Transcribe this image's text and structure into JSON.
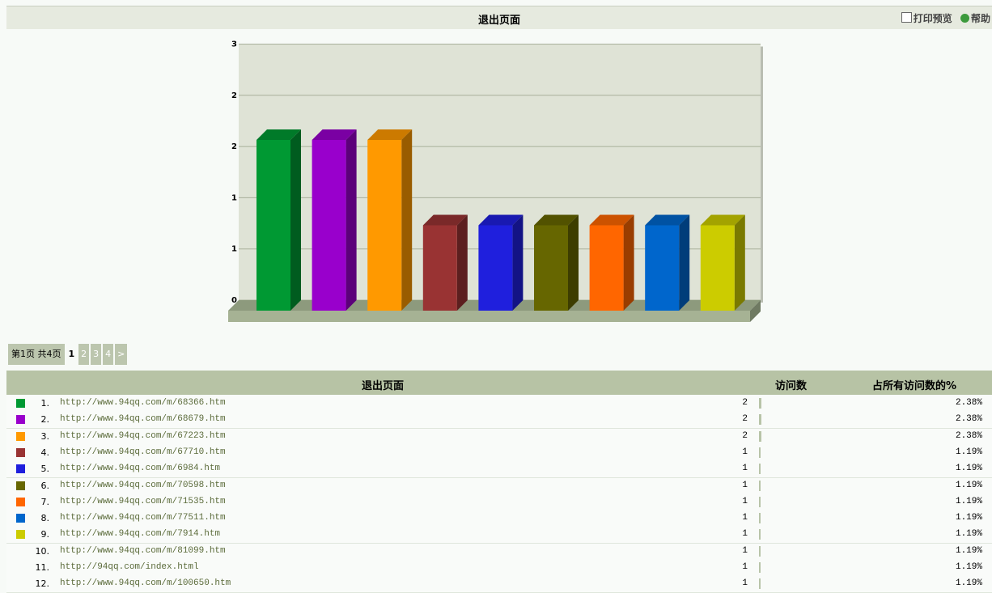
{
  "header": {
    "title": "退出页面",
    "print": "打印预览",
    "help": "帮助"
  },
  "chart_data": {
    "type": "bar",
    "categories": [
      null,
      null,
      null,
      null,
      null,
      null,
      null,
      null,
      null
    ],
    "values": [
      2,
      2,
      2,
      1,
      1,
      1,
      1,
      1,
      1
    ],
    "colors": [
      "#009933",
      "#9900cc",
      "#ff9900",
      "#993333",
      "#1f1fdd",
      "#666600",
      "#ff6600",
      "#0066cc",
      "#cccc00"
    ],
    "ylim": [
      0,
      3
    ],
    "yticks": [
      0,
      {
        "value": 0.6,
        "label": "1"
      },
      {
        "value": 1.2,
        "label": "1"
      },
      {
        "value": 1.8,
        "label": "2"
      },
      {
        "value": 2.4,
        "label": "2"
      },
      3
    ],
    "grid": true
  },
  "pagination": {
    "summary": "第1页 共4页",
    "pages": [
      "1",
      "2",
      "3",
      "4"
    ],
    "next": ">"
  },
  "table": {
    "columns": [
      "退出页面",
      "访问数",
      "占所有访问数的%"
    ],
    "rows": [
      {
        "rank": "1.",
        "url": "http://www.94qq.com/m/68366.htm",
        "visits": 2,
        "share": "2.38%"
      },
      {
        "rank": "2.",
        "url": "http://www.94qq.com/m/68679.htm",
        "visits": 2,
        "share": "2.38%"
      },
      {
        "rank": "3.",
        "url": "http://www.94qq.com/m/67223.htm",
        "visits": 2,
        "share": "2.38%"
      },
      {
        "rank": "4.",
        "url": "http://www.94qq.com/m/67710.htm",
        "visits": 1,
        "share": "1.19%"
      },
      {
        "rank": "5.",
        "url": "http://www.94qq.com/m/6984.htm",
        "visits": 1,
        "share": "1.19%"
      },
      {
        "rank": "6.",
        "url": "http://www.94qq.com/m/70598.htm",
        "visits": 1,
        "share": "1.19%"
      },
      {
        "rank": "7.",
        "url": "http://www.94qq.com/m/71535.htm",
        "visits": 1,
        "share": "1.19%"
      },
      {
        "rank": "8.",
        "url": "http://www.94qq.com/m/77511.htm",
        "visits": 1,
        "share": "1.19%"
      },
      {
        "rank": "9.",
        "url": "http://www.94qq.com/m/7914.htm",
        "visits": 1,
        "share": "1.19%"
      },
      {
        "rank": "10.",
        "url": "http://www.94qq.com/m/81099.htm",
        "visits": 1,
        "share": "1.19%"
      },
      {
        "rank": "11.",
        "url": "http://94qq.com/index.html",
        "visits": 1,
        "share": "1.19%"
      },
      {
        "rank": "12.",
        "url": "http://www.94qq.com/m/100650.htm",
        "visits": 1,
        "share": "1.19%"
      }
    ]
  }
}
